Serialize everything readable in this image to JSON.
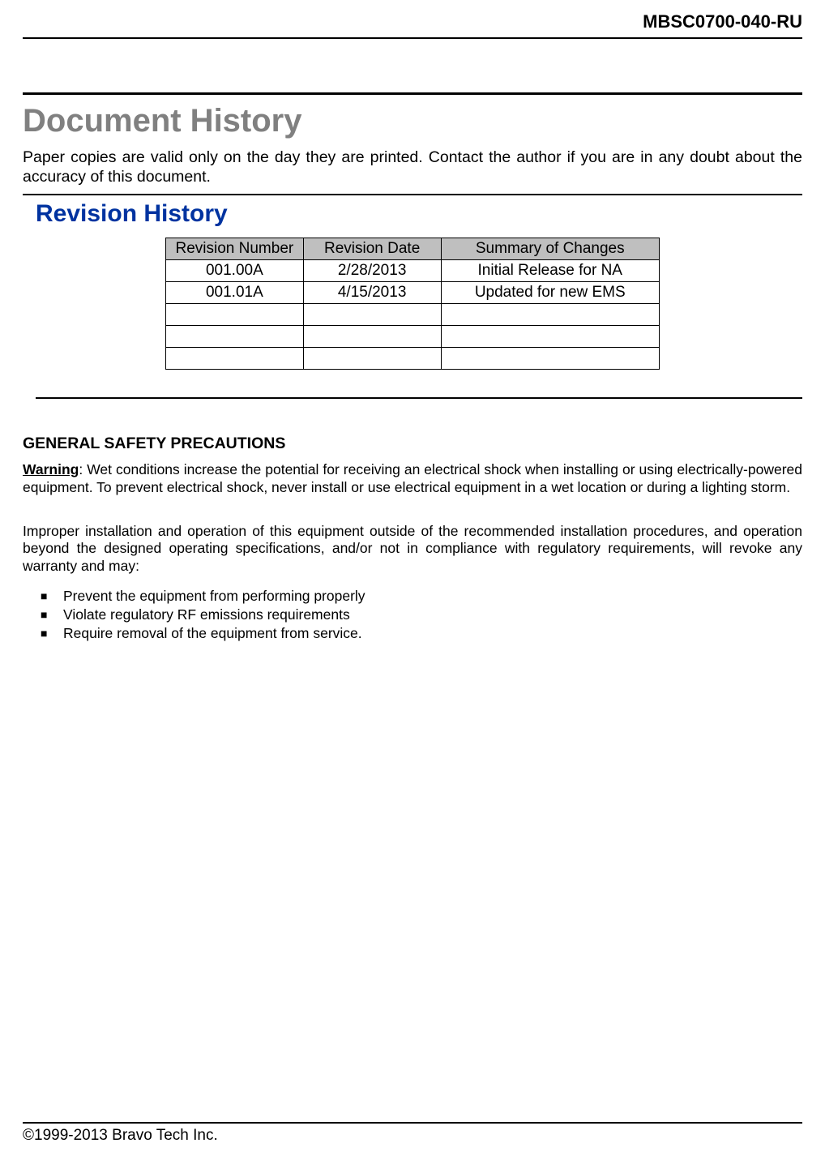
{
  "header": {
    "doc_code": "MBSC0700-040-RU"
  },
  "doc_title": "Document History",
  "intro_text": "Paper copies are valid only on the day they are printed. Contact the author if you are in any doubt about the accuracy of this document.",
  "revision": {
    "title": "Revision History",
    "columns": [
      "Revision Number",
      "Revision Date",
      "Summary of Changes"
    ],
    "rows": [
      [
        "001.00A",
        "2/28/2013",
        "Initial Release for NA"
      ],
      [
        "001.01A",
        "4/15/2013",
        "Updated for new EMS"
      ],
      [
        "",
        "",
        ""
      ],
      [
        "",
        "",
        ""
      ],
      [
        "",
        "",
        ""
      ]
    ],
    "header_bg_color": "#bfbfbf",
    "border_color": "#000000",
    "font_size": 19
  },
  "safety": {
    "title": "GENERAL SAFETY PRECAUTIONS",
    "warning_label": "Warning",
    "warning_text": ": Wet conditions increase the potential for receiving an electrical shock when installing or using electrically-powered equipment. To prevent electrical shock, never install or use electrical equipment in a wet location or during a lighting storm.",
    "improper_text": "Improper installation and operation of this equipment outside of the recommended installation procedures, and operation beyond the designed operating specifications, and/or not in compliance with regulatory requirements, will revoke any warranty and may:",
    "bullets": [
      "Prevent the equipment from performing properly",
      "Violate regulatory RF emissions requirements",
      "Require removal of the equipment from service."
    ]
  },
  "footer": {
    "copyright": "©1999-2013 Bravo Tech Inc."
  },
  "colors": {
    "title_gray": "#808080",
    "revision_blue": "#0033a0",
    "text_black": "#000000",
    "background": "#ffffff"
  },
  "typography": {
    "body_font": "Arial",
    "doc_title_size": 40,
    "section_title_size": 30,
    "body_size": 19.5,
    "small_body_size": 17.5
  }
}
